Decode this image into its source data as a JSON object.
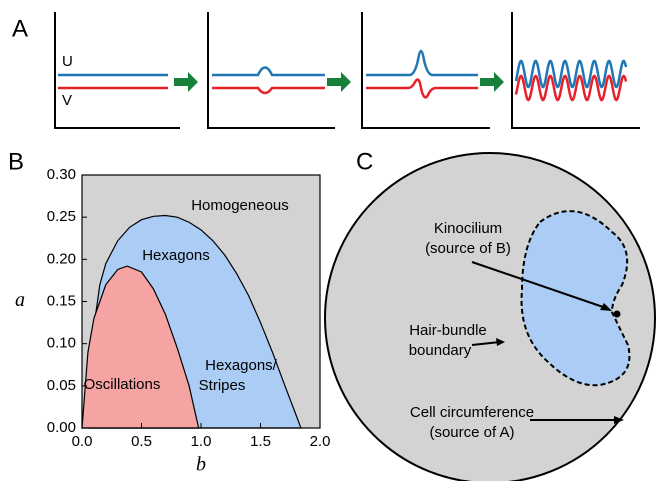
{
  "panels": {
    "A": {
      "letter": "A",
      "u_label": "U",
      "v_label": "V"
    },
    "B": {
      "letter": "B"
    },
    "C": {
      "letter": "C",
      "kinocilium": "Kinocilium",
      "kinocilium_source": "(source of B)",
      "bundle_1": "Hair-bundle",
      "bundle_2": "boundary",
      "cell": "Cell circumference",
      "cell_source": "(source of A)"
    }
  },
  "chart_data": {
    "type": "area",
    "xlabel": "b",
    "ylabel": "a",
    "xlim": [
      0,
      2
    ],
    "ylim": [
      0,
      0.3
    ],
    "xticks": [
      {
        "value": 0,
        "label": "0.0"
      },
      0.5,
      {
        "value": 1,
        "label": "1.0"
      },
      {
        "value": 1.5,
        "label": "1.5"
      },
      {
        "value": 2,
        "label": "2.0"
      }
    ],
    "yticks": [
      {
        "value": 0,
        "label": "0.00"
      },
      {
        "value": 0.05,
        "label": "0.05"
      },
      {
        "value": 0.1,
        "label": "0.10"
      },
      {
        "value": 0.15,
        "label": "0.15"
      },
      {
        "value": 0.2,
        "label": "0.20"
      },
      {
        "value": 0.25,
        "label": "0.25"
      },
      {
        "value": 0.3,
        "label": "0.30"
      }
    ],
    "background_color": "#d3d3d3",
    "annotations": [
      "Homogeneous",
      "Hexagons/",
      "Stripes"
    ],
    "series": [
      {
        "name": "Hexagons",
        "color": "#aaccf5",
        "x": [
          0.06,
          0.1,
          0.15,
          0.2,
          0.3,
          0.4,
          0.5,
          0.6,
          0.7,
          0.8,
          0.9,
          1.0,
          1.1,
          1.2,
          1.3,
          1.4,
          1.5,
          1.6,
          1.7,
          1.8,
          1.84
        ],
        "values": [
          0,
          0.12,
          0.17,
          0.195,
          0.222,
          0.238,
          0.247,
          0.251,
          0.252,
          0.25,
          0.244,
          0.235,
          0.222,
          0.205,
          0.183,
          0.157,
          0.125,
          0.09,
          0.052,
          0.015,
          0
        ]
      },
      {
        "name": "Oscillations",
        "color": "#f5a3a3",
        "x": [
          0,
          0.05,
          0.1,
          0.2,
          0.3,
          0.38,
          0.5,
          0.6,
          0.7,
          0.8,
          0.9,
          0.98
        ],
        "values": [
          0,
          0.09,
          0.13,
          0.17,
          0.188,
          0.192,
          0.185,
          0.165,
          0.135,
          0.095,
          0.05,
          0
        ]
      }
    ]
  }
}
